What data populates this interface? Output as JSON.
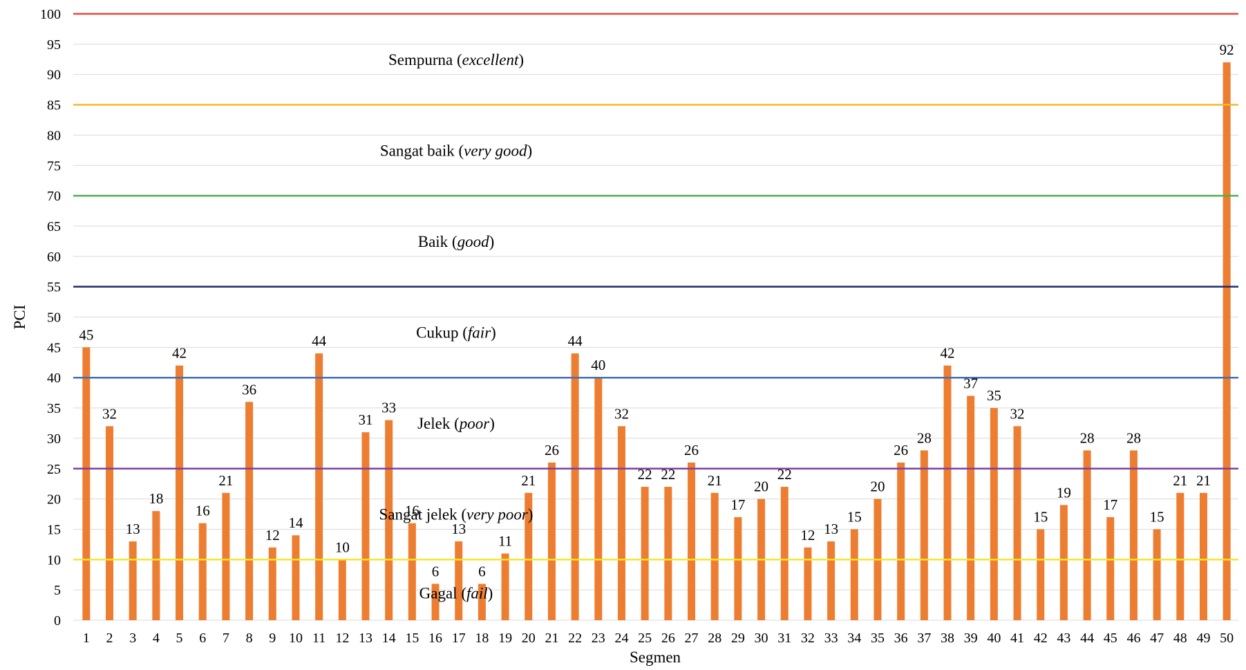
{
  "chart_data": {
    "type": "bar",
    "xlabel": "Segmen",
    "ylabel": "PCI",
    "ylim": [
      0,
      100
    ],
    "ytick_step": 5,
    "grid": true,
    "bar_color": "#ED7D31",
    "categories": [
      "1",
      "2",
      "3",
      "4",
      "5",
      "6",
      "7",
      "8",
      "9",
      "10",
      "11",
      "12",
      "13",
      "14",
      "15",
      "16",
      "17",
      "18",
      "19",
      "20",
      "21",
      "22",
      "23",
      "24",
      "25",
      "26",
      "27",
      "28",
      "29",
      "30",
      "31",
      "32",
      "33",
      "34",
      "35",
      "36",
      "37",
      "38",
      "39",
      "40",
      "41",
      "42",
      "43",
      "44",
      "45",
      "46",
      "47",
      "48",
      "49",
      "50"
    ],
    "values": [
      45,
      32,
      13,
      18,
      42,
      16,
      21,
      36,
      12,
      14,
      44,
      10,
      31,
      33,
      16,
      6,
      13,
      6,
      11,
      21,
      26,
      44,
      40,
      32,
      22,
      22,
      26,
      21,
      17,
      20,
      22,
      12,
      13,
      15,
      20,
      26,
      28,
      42,
      37,
      35,
      32,
      15,
      19,
      28,
      17,
      28,
      15,
      21,
      21,
      92
    ],
    "thresholds": [
      {
        "value": 100,
        "color": "#E8463B"
      },
      {
        "value": 85,
        "color": "#F5B82E"
      },
      {
        "value": 70,
        "color": "#4CAF50"
      },
      {
        "value": 55,
        "color": "#1F2A6B"
      },
      {
        "value": 40,
        "color": "#3F6FBF"
      },
      {
        "value": 25,
        "color": "#7B3FA0"
      },
      {
        "value": 10,
        "color": "#F7E62B"
      }
    ],
    "bands": [
      {
        "label": "Sempurna",
        "label_en": "excellent",
        "y": 92.5
      },
      {
        "label": "Sangat baik",
        "label_en": "very good",
        "y": 77.5
      },
      {
        "label": "Baik",
        "label_en": "good",
        "y": 62.5
      },
      {
        "label": "Cukup",
        "label_en": "fair",
        "y": 47.5
      },
      {
        "label": "Jelek",
        "label_en": "poor",
        "y": 32.5
      },
      {
        "label": "Sangat jelek",
        "label_en": "very poor",
        "y": 17.5
      },
      {
        "label": "Gagal",
        "label_en": "fail",
        "y": 4.5
      }
    ]
  }
}
